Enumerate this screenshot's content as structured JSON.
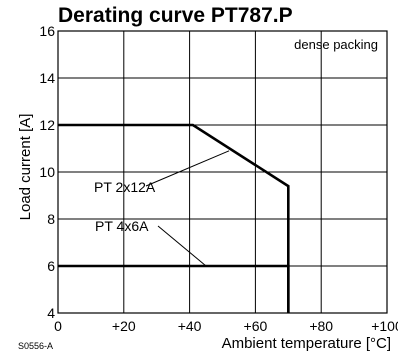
{
  "chart_data": {
    "type": "line",
    "title": "Derating curve PT787.P",
    "xlabel": "Ambient temperature [°C]",
    "ylabel": "Load current [A]",
    "xlim": [
      0,
      100
    ],
    "ylim": [
      4,
      16
    ],
    "x_ticks": [
      0,
      20,
      40,
      60,
      80,
      100
    ],
    "x_tick_labels": [
      "0",
      "+20",
      "+40",
      "+60",
      "+80",
      "+100"
    ],
    "y_ticks": [
      4,
      6,
      8,
      10,
      12,
      14,
      16
    ],
    "y_tick_labels": [
      "4",
      "6",
      "8",
      "10",
      "12",
      "14",
      "16"
    ],
    "grid": true,
    "annotation": "dense packing",
    "figure_code": "S0556-A",
    "series": [
      {
        "name": "PT 2x12A",
        "style": "solid",
        "points": [
          [
            0,
            12
          ],
          [
            41,
            12
          ],
          [
            70,
            9.4
          ],
          [
            70,
            4
          ]
        ],
        "callout_anchor": [
          52,
          10.9
        ]
      },
      {
        "name": "PT 4x6A",
        "style": "solid",
        "points": [
          [
            0,
            6
          ],
          [
            70,
            6
          ],
          [
            70,
            4
          ]
        ],
        "callout_anchor": [
          45,
          6
        ]
      }
    ],
    "colors": {
      "line": "#000000",
      "grid": "#000000",
      "background": "#ffffff"
    }
  }
}
